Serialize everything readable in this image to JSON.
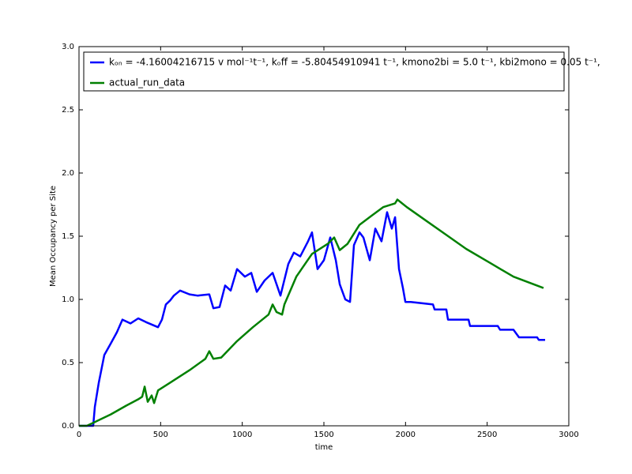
{
  "chart_data": {
    "type": "line",
    "xlabel": "time",
    "ylabel": "Mean Occupancy per Site",
    "xlim": [
      0,
      3000
    ],
    "ylim": [
      0,
      3.0
    ],
    "xticks": [
      0,
      500,
      1000,
      1500,
      2000,
      2500,
      3000
    ],
    "yticks": [
      {
        "value": 0,
        "label": "0.0"
      },
      {
        "value": 0.5,
        "label": "0.5"
      },
      {
        "value": 1,
        "label": "1.0"
      },
      {
        "value": 1.5,
        "label": "1.5"
      },
      {
        "value": 2,
        "label": "2.0"
      },
      {
        "value": 2.5,
        "label": "2.5"
      },
      {
        "value": 3,
        "label": "3.0"
      }
    ],
    "legend": "upper left",
    "series": [
      {
        "name": "kₒₙ = -4.16004216715 v mol⁻¹t⁻¹, kₒff = -5.80454910941 t⁻¹, kmono2bi = 5.0 t⁻¹, kbi2mono = 0.05 t⁻¹,",
        "color": "#0000ff",
        "x": [
          0,
          87,
          97,
          121,
          155,
          194,
          232,
          266,
          315,
          363,
          411,
          484,
          508,
          532,
          557,
          581,
          619,
          677,
          726,
          798,
          823,
          861,
          895,
          929,
          968,
          1016,
          1055,
          1089,
          1137,
          1186,
          1234,
          1282,
          1316,
          1355,
          1403,
          1427,
          1461,
          1500,
          1539,
          1573,
          1597,
          1631,
          1660,
          1684,
          1718,
          1742,
          1781,
          1815,
          1853,
          1887,
          1916,
          1936,
          1960,
          1984,
          1999,
          2032,
          2168,
          2178,
          2250,
          2260,
          2386,
          2395,
          2565,
          2579,
          2661,
          2695,
          2806,
          2816,
          2855
        ],
        "values": [
          0,
          0,
          0.15,
          0.34,
          0.56,
          0.65,
          0.74,
          0.84,
          0.81,
          0.85,
          0.82,
          0.78,
          0.84,
          0.96,
          0.99,
          1.03,
          1.07,
          1.04,
          1.03,
          1.04,
          0.93,
          0.94,
          1.11,
          1.07,
          1.24,
          1.18,
          1.21,
          1.06,
          1.15,
          1.21,
          1.03,
          1.28,
          1.37,
          1.34,
          1.46,
          1.53,
          1.24,
          1.31,
          1.49,
          1.31,
          1.12,
          1.0,
          0.98,
          1.43,
          1.53,
          1.49,
          1.31,
          1.56,
          1.46,
          1.69,
          1.56,
          1.65,
          1.24,
          1.09,
          0.98,
          0.98,
          0.96,
          0.92,
          0.92,
          0.84,
          0.84,
          0.79,
          0.79,
          0.76,
          0.76,
          0.7,
          0.7,
          0.68,
          0.68
        ]
      },
      {
        "name": "actual_run_data",
        "color": "#008000",
        "x": [
          0,
          48,
          97,
          194,
          290,
          363,
          387,
          402,
          421,
          445,
          460,
          484,
          557,
          677,
          774,
          798,
          823,
          871,
          968,
          1065,
          1161,
          1186,
          1210,
          1244,
          1258,
          1331,
          1427,
          1524,
          1563,
          1597,
          1645,
          1718,
          1790,
          1863,
          1936,
          1950,
          2008,
          2129,
          2250,
          2371,
          2516,
          2661,
          2845
        ],
        "values": [
          0,
          0,
          0.03,
          0.09,
          0.16,
          0.21,
          0.23,
          0.31,
          0.19,
          0.24,
          0.18,
          0.28,
          0.34,
          0.44,
          0.53,
          0.59,
          0.53,
          0.54,
          0.67,
          0.78,
          0.88,
          0.96,
          0.9,
          0.88,
          0.96,
          1.18,
          1.36,
          1.44,
          1.49,
          1.39,
          1.44,
          1.59,
          1.66,
          1.73,
          1.76,
          1.79,
          1.73,
          1.62,
          1.51,
          1.4,
          1.29,
          1.18,
          1.09
        ]
      }
    ]
  }
}
